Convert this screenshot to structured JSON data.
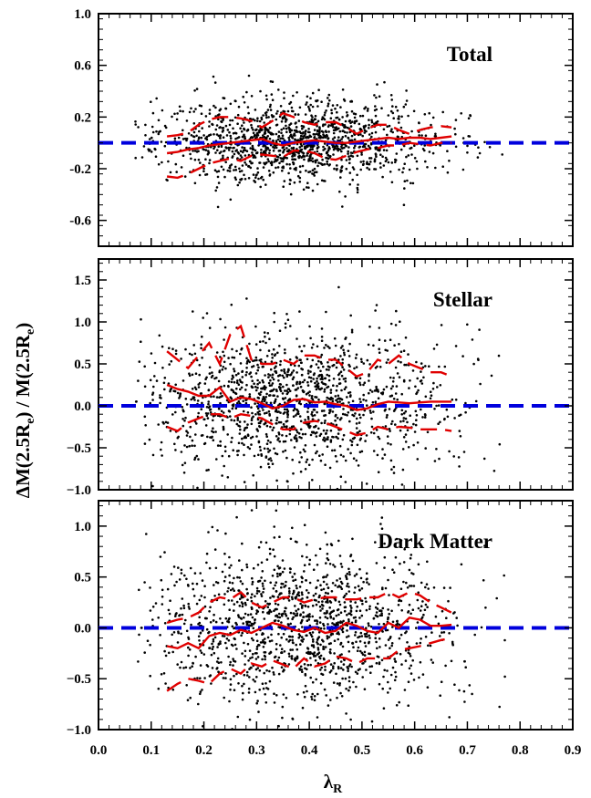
{
  "chart_data": {
    "type": "scatter",
    "xlabel": "λR",
    "ylabel": "ΔM(2.5Re) / M(2.5Re)",
    "xlim": [
      0.0,
      0.9
    ],
    "x_ticks": [
      "0.0",
      "0.1",
      "0.2",
      "0.3",
      "0.4",
      "0.5",
      "0.6",
      "0.7",
      "0.8",
      "0.9"
    ],
    "colors": {
      "points": "#000000",
      "percentiles": "#e00000",
      "zero_line": "#0000dd"
    },
    "reference_line": {
      "y": 0.0,
      "style": "dashed"
    },
    "panels": [
      {
        "title": "Total",
        "ylim": [
          -0.8,
          1.0
        ],
        "y_ticks": [
          "1.0",
          "0.6",
          "0.2",
          "-0.2",
          "-0.6"
        ],
        "scatter": {
          "n_points": 1400,
          "x_mean": 0.38,
          "x_sd": 0.13,
          "y_center": 0.02,
          "y_sd": 0.13
        },
        "median": {
          "x": [
            0.13,
            0.15,
            0.17,
            0.19,
            0.21,
            0.23,
            0.25,
            0.27,
            0.29,
            0.31,
            0.33,
            0.35,
            0.37,
            0.39,
            0.41,
            0.43,
            0.45,
            0.47,
            0.49,
            0.51,
            0.53,
            0.55,
            0.57,
            0.59,
            0.61,
            0.63,
            0.65,
            0.67
          ],
          "y": [
            -0.08,
            -0.07,
            -0.05,
            -0.04,
            -0.02,
            -0.01,
            0.0,
            0.01,
            0.02,
            0.03,
            0.0,
            -0.02,
            0.0,
            0.01,
            0.02,
            0.01,
            0.0,
            0.0,
            0.01,
            0.02,
            0.03,
            0.04,
            0.03,
            0.04,
            0.04,
            0.03,
            0.04,
            0.05
          ]
        },
        "p16": {
          "x": [
            0.13,
            0.15,
            0.17,
            0.19,
            0.21,
            0.23,
            0.25,
            0.27,
            0.29,
            0.31,
            0.33,
            0.35,
            0.37,
            0.39,
            0.41,
            0.43,
            0.45,
            0.47,
            0.49,
            0.51,
            0.53,
            0.55,
            0.57,
            0.59,
            0.61,
            0.63,
            0.65,
            0.67
          ],
          "y": [
            -0.26,
            -0.27,
            -0.24,
            -0.2,
            -0.16,
            -0.14,
            -0.12,
            -0.14,
            -0.1,
            -0.09,
            -0.1,
            -0.11,
            -0.06,
            -0.06,
            -0.08,
            -0.12,
            -0.13,
            -0.1,
            -0.07,
            -0.05,
            -0.04,
            -0.02,
            -0.02,
            0.0,
            -0.01,
            -0.02,
            0.0,
            0.0
          ]
        },
        "p84": {
          "x": [
            0.13,
            0.15,
            0.17,
            0.19,
            0.21,
            0.23,
            0.25,
            0.27,
            0.29,
            0.31,
            0.33,
            0.35,
            0.37,
            0.39,
            0.41,
            0.43,
            0.45,
            0.47,
            0.49,
            0.51,
            0.53,
            0.55,
            0.57,
            0.59,
            0.61,
            0.63,
            0.65,
            0.67
          ],
          "y": [
            0.05,
            0.06,
            0.08,
            0.14,
            0.18,
            0.2,
            0.2,
            0.19,
            0.17,
            0.12,
            0.17,
            0.23,
            0.2,
            0.16,
            0.14,
            0.16,
            0.16,
            0.12,
            0.07,
            0.11,
            0.14,
            0.14,
            0.1,
            0.07,
            0.1,
            0.12,
            0.13,
            0.12
          ]
        }
      },
      {
        "title": "Stellar",
        "ylim": [
          -1.0,
          1.75
        ],
        "y_ticks": [
          "1.5",
          "1.0",
          "0.5",
          "0.0",
          "−0.5",
          "−1.0"
        ],
        "scatter": {
          "n_points": 1400,
          "x_mean": 0.37,
          "x_sd": 0.14,
          "y_center": 0.05,
          "y_sd": 0.34
        },
        "median": {
          "x": [
            0.13,
            0.15,
            0.17,
            0.19,
            0.21,
            0.23,
            0.25,
            0.27,
            0.29,
            0.31,
            0.33,
            0.35,
            0.37,
            0.39,
            0.41,
            0.43,
            0.45,
            0.47,
            0.49,
            0.51,
            0.53,
            0.55,
            0.57,
            0.59,
            0.61,
            0.63,
            0.65,
            0.67
          ],
          "y": [
            0.25,
            0.2,
            0.17,
            0.12,
            0.12,
            0.22,
            0.05,
            0.1,
            0.08,
            0.03,
            -0.03,
            0.0,
            0.07,
            0.08,
            0.04,
            0.05,
            0.02,
            0.0,
            -0.05,
            -0.03,
            0.02,
            0.05,
            0.04,
            0.03,
            0.04,
            0.05,
            0.05,
            0.05
          ]
        },
        "p16": {
          "x": [
            0.13,
            0.15,
            0.17,
            0.19,
            0.21,
            0.23,
            0.25,
            0.27,
            0.29,
            0.31,
            0.33,
            0.35,
            0.37,
            0.39,
            0.41,
            0.43,
            0.45,
            0.47,
            0.49,
            0.51,
            0.53,
            0.55,
            0.57,
            0.59,
            0.61,
            0.63,
            0.65,
            0.67
          ],
          "y": [
            -0.25,
            -0.3,
            -0.2,
            -0.15,
            -0.1,
            -0.1,
            -0.15,
            -0.1,
            -0.12,
            -0.15,
            -0.22,
            -0.28,
            -0.28,
            -0.2,
            -0.18,
            -0.2,
            -0.25,
            -0.3,
            -0.35,
            -0.32,
            -0.25,
            -0.28,
            -0.25,
            -0.26,
            -0.28,
            -0.28,
            -0.28,
            -0.3
          ]
        },
        "p84": {
          "x": [
            0.13,
            0.15,
            0.17,
            0.19,
            0.21,
            0.23,
            0.25,
            0.27,
            0.29,
            0.31,
            0.33,
            0.35,
            0.37,
            0.39,
            0.41,
            0.43,
            0.45,
            0.47,
            0.49,
            0.51,
            0.53,
            0.55,
            0.57,
            0.59,
            0.61,
            0.63,
            0.65,
            0.67
          ],
          "y": [
            0.65,
            0.55,
            0.45,
            0.6,
            0.75,
            0.5,
            0.85,
            0.95,
            0.55,
            0.5,
            0.5,
            0.55,
            0.5,
            0.6,
            0.6,
            0.55,
            0.55,
            0.45,
            0.35,
            0.4,
            0.55,
            0.5,
            0.6,
            0.5,
            0.45,
            0.4,
            0.4,
            0.35
          ]
        }
      },
      {
        "title": "Dark Matter",
        "ylim": [
          -1.0,
          1.25
        ],
        "y_ticks": [
          "1.0",
          "0.5",
          "0.0",
          "−0.5",
          "−1.0"
        ],
        "scatter": {
          "n_points": 1400,
          "x_mean": 0.38,
          "x_sd": 0.14,
          "y_center": 0.0,
          "y_sd": 0.32
        },
        "median": {
          "x": [
            0.13,
            0.15,
            0.17,
            0.19,
            0.21,
            0.23,
            0.25,
            0.27,
            0.29,
            0.31,
            0.33,
            0.35,
            0.37,
            0.39,
            0.41,
            0.43,
            0.45,
            0.47,
            0.49,
            0.51,
            0.53,
            0.55,
            0.57,
            0.59,
            0.61,
            0.63,
            0.65,
            0.67
          ],
          "y": [
            -0.18,
            -0.2,
            -0.15,
            -0.2,
            -0.08,
            -0.05,
            -0.07,
            -0.02,
            -0.05,
            0.0,
            0.05,
            0.02,
            -0.02,
            -0.04,
            0.0,
            -0.05,
            -0.03,
            0.05,
            0.02,
            -0.03,
            -0.05,
            0.05,
            0.0,
            0.1,
            0.08,
            0.02,
            0.02,
            0.03
          ]
        },
        "p16": {
          "x": [
            0.13,
            0.15,
            0.17,
            0.19,
            0.21,
            0.23,
            0.25,
            0.27,
            0.29,
            0.31,
            0.33,
            0.35,
            0.37,
            0.39,
            0.41,
            0.43,
            0.45,
            0.47,
            0.49,
            0.51,
            0.53,
            0.55,
            0.57,
            0.59,
            0.61,
            0.63,
            0.65,
            0.67
          ],
          "y": [
            -0.62,
            -0.55,
            -0.5,
            -0.52,
            -0.55,
            -0.45,
            -0.4,
            -0.45,
            -0.35,
            -0.38,
            -0.32,
            -0.36,
            -0.4,
            -0.3,
            -0.38,
            -0.35,
            -0.28,
            -0.3,
            -0.35,
            -0.3,
            -0.3,
            -0.3,
            -0.22,
            -0.2,
            -0.18,
            -0.15,
            -0.12,
            -0.1
          ]
        },
        "p84": {
          "x": [
            0.13,
            0.15,
            0.17,
            0.19,
            0.21,
            0.23,
            0.25,
            0.27,
            0.29,
            0.31,
            0.33,
            0.35,
            0.37,
            0.39,
            0.41,
            0.43,
            0.45,
            0.47,
            0.49,
            0.51,
            0.53,
            0.55,
            0.57,
            0.59,
            0.61,
            0.63,
            0.65,
            0.67
          ],
          "y": [
            0.05,
            0.08,
            0.1,
            0.15,
            0.25,
            0.3,
            0.28,
            0.35,
            0.25,
            0.2,
            0.25,
            0.3,
            0.3,
            0.25,
            0.28,
            0.3,
            0.3,
            0.28,
            0.28,
            0.3,
            0.3,
            0.35,
            0.3,
            0.35,
            0.32,
            0.25,
            0.2,
            0.15
          ]
        }
      }
    ]
  }
}
